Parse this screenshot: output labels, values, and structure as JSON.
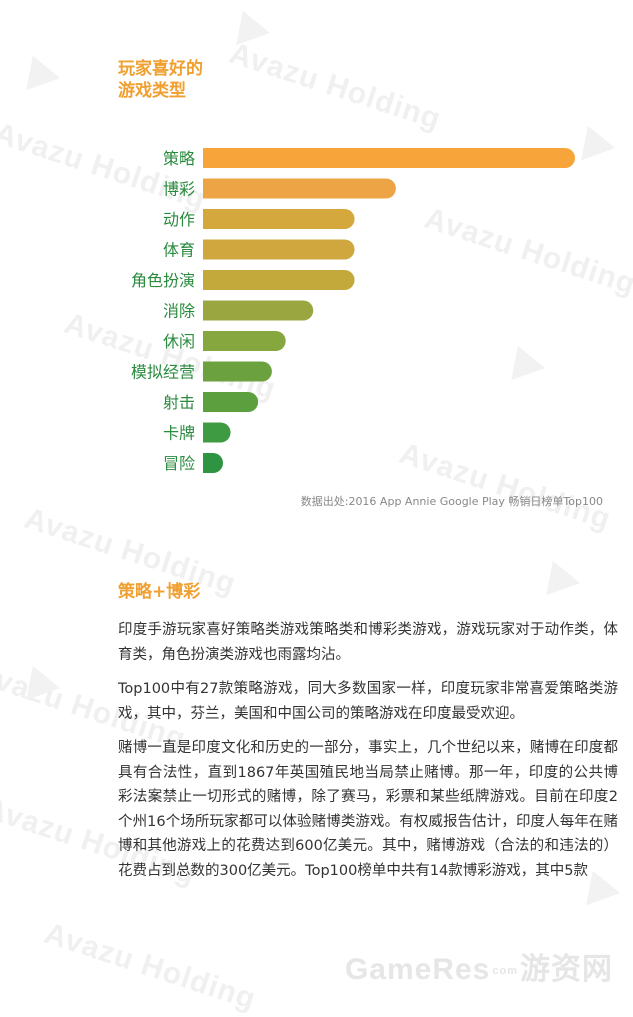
{
  "title_lines": [
    "玩家喜好的",
    "游戏类型"
  ],
  "source": "数据出处:2016 App Annie Google Play 畅销日榜单Top100",
  "watermark": "Avazu Holding",
  "chart_data": {
    "type": "bar",
    "orientation": "horizontal",
    "categories": [
      "策略",
      "博彩",
      "动作",
      "体育",
      "角色扮演",
      "消除",
      "休闲",
      "模拟经营",
      "射击",
      "卡牌",
      "冒险"
    ],
    "values": [
      27,
      14,
      11,
      11,
      11,
      8,
      6,
      5,
      4,
      2,
      1
    ],
    "colors": [
      "#f7a43a",
      "#eca444",
      "#d4a83c",
      "#cfa73e",
      "#c3a93c",
      "#9aa640",
      "#86a73e",
      "#6ba13e",
      "#5c9f3e",
      "#3f9b42",
      "#2e9442"
    ],
    "label_color": "#2a8a3e",
    "xlim": [
      0,
      27
    ],
    "grid": false,
    "legend": "none"
  },
  "section_title": "策略+博彩",
  "paragraphs": [
    "印度手游玩家喜好策略类游戏策略类和博彩类游戏，游戏玩家对于动作类，体育类，角色扮演类游戏也雨露均沾。",
    "Top100中有27款策略游戏，同大多数国家一样，印度玩家非常喜爱策略类游戏，其中，芬兰，美国和中国公司的策略游戏在印度最受欢迎。",
    "赌博一直是印度文化和历史的一部分，事实上，几个世纪以来，赌博在印度都具有合法性，直到1867年英国殖民地当局禁止赌博。那一年，印度的公共博彩法案禁止一切形式的赌博，除了赛马，彩票和某些纸牌游戏。目前在印度2个州16个场所玩家都可以体验赌博类游戏。有权威报告估计，印度人每年在赌博和其他游戏上的花费达到600亿美元。其中，赌博游戏（合法的和违法的）花费占到总数的300亿美元。Top100榜单中共有14款博彩游戏，其中5款"
  ],
  "footer": {
    "brand": "GameRes",
    "sub": "com",
    "cn": "游资网"
  }
}
